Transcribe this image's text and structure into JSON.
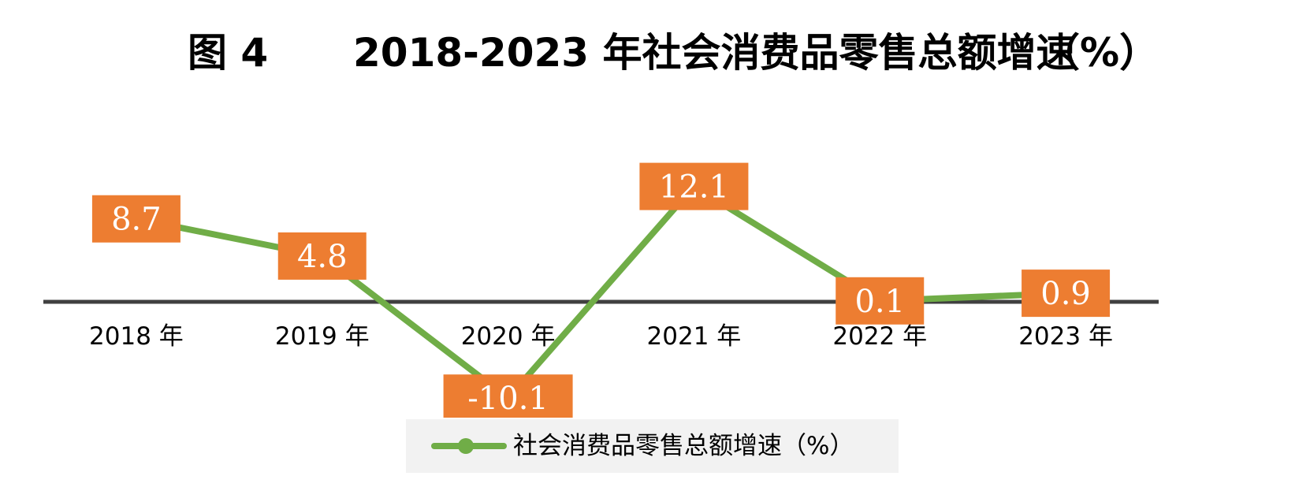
{
  "title": {
    "figure_label": "图 4",
    "text": "2018-2023 年社会消费品零售总额增速",
    "unit": "（%）"
  },
  "legend": {
    "label": "社会消费品零售总额增速（%）"
  },
  "chart_data": {
    "type": "line",
    "categories": [
      "2018 年",
      "2019 年",
      "2020 年",
      "2021 年",
      "2022 年",
      "2023 年"
    ],
    "series": [
      {
        "name": "社会消费品零售总额增速（%）",
        "values": [
          8.7,
          4.8,
          -10.1,
          12.1,
          0.1,
          0.9
        ],
        "labels": [
          "8.7",
          "4.8",
          "-10.1",
          "12.1",
          "0.1",
          "0.9"
        ],
        "color": "#70ad47"
      }
    ],
    "data_label_color": "#ed7d31",
    "axis_color": "#404040",
    "legend_position": "bottom",
    "grid": false
  }
}
